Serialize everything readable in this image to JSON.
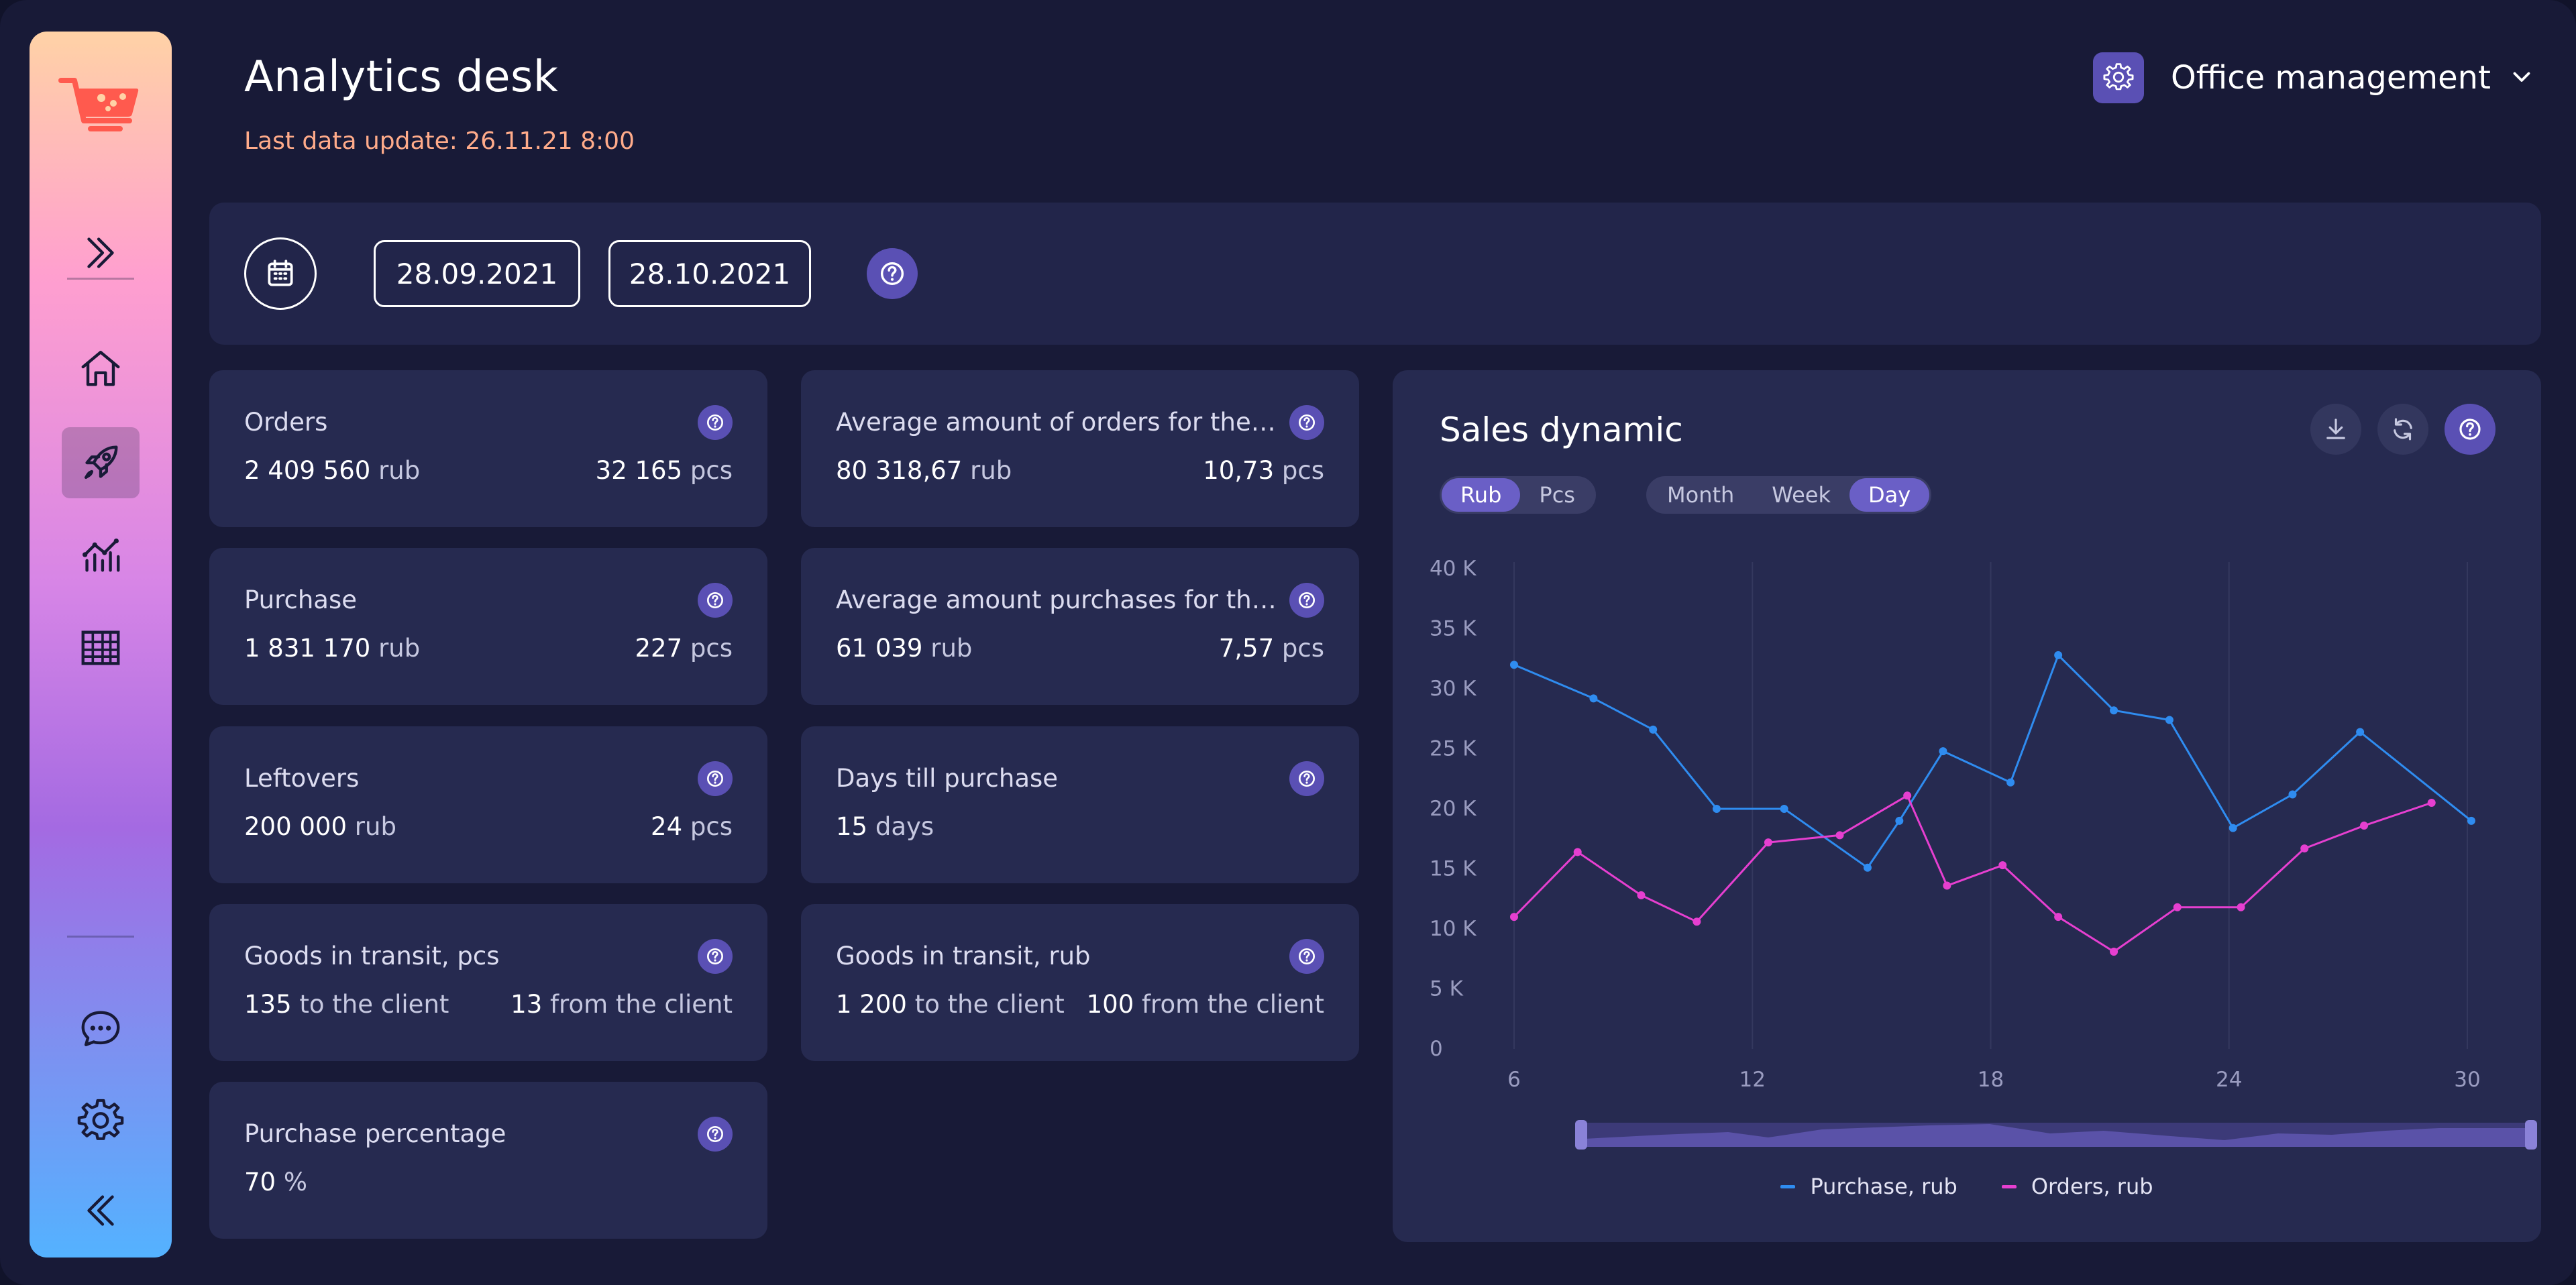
{
  "sidebar": {
    "items": [
      {
        "name": "expand-icon",
        "active": false
      },
      {
        "name": "home-icon",
        "active": false
      },
      {
        "name": "rocket-icon",
        "active": true
      },
      {
        "name": "analytics-icon",
        "active": false
      },
      {
        "name": "table-icon",
        "active": false
      },
      {
        "name": "chat-icon",
        "active": false
      },
      {
        "name": "settings-icon",
        "active": false
      },
      {
        "name": "collapse-icon",
        "active": false
      }
    ]
  },
  "header": {
    "title": "Analytics desk",
    "last_update": "Last data update: 26.11.21 8:00",
    "office": "Office management"
  },
  "datebar": {
    "date_from": "28.09.2021",
    "date_to": "28.10.2021"
  },
  "cards": [
    {
      "title": "Orders",
      "left_num": "2 409 560",
      "left_unit": "rub",
      "right_num": "32 165",
      "right_unit": "pcs"
    },
    {
      "title": "Average amount of orders for the per..",
      "left_num": "80 318,67",
      "left_unit": "rub",
      "right_num": "10,73",
      "right_unit": "pcs"
    },
    {
      "title": "Purchase",
      "left_num": "1 831 170",
      "left_unit": "rub",
      "right_num": "227",
      "right_unit": "pcs"
    },
    {
      "title": "Average amount purchases for the pe..",
      "left_num": "61 039",
      "left_unit": "rub",
      "right_num": "7,57",
      "right_unit": "pcs"
    },
    {
      "title": "Leftovers",
      "left_num": "200 000",
      "left_unit": "rub",
      "right_num": "24",
      "right_unit": "pcs"
    },
    {
      "title": "Days till purchase",
      "left_num": "15",
      "left_unit": "days",
      "right_num": "",
      "right_unit": ""
    },
    {
      "title": "Goods in transit, pcs",
      "left_num": "135",
      "left_unit": "to the client",
      "right_num": "13",
      "right_unit": "from the client"
    },
    {
      "title": "Goods in transit, rub",
      "left_num": "1 200",
      "left_unit": "to the client",
      "right_num": "100",
      "right_unit": "from the client"
    },
    {
      "title": "Purchase percentage",
      "left_num": "70",
      "left_unit": "%",
      "right_num": "",
      "right_unit": ""
    }
  ],
  "chart": {
    "title": "Sales dynamic",
    "unit_toggle": [
      "Rub",
      "Pcs"
    ],
    "unit_selected": "Rub",
    "period_toggle": [
      "Month",
      "Week",
      "Day"
    ],
    "period_selected": "Day"
  },
  "colors": {
    "purchase": "#2f8cf0",
    "orders": "#e63fd0",
    "accent": "#5a50b4"
  },
  "chart_data": {
    "type": "line",
    "title": "Sales dynamic",
    "xlabel": "",
    "ylabel": "",
    "x": [
      6,
      8,
      10,
      11,
      13,
      14,
      15,
      16,
      17,
      18,
      19,
      20,
      21,
      22,
      24,
      25,
      26,
      27,
      28,
      29,
      30
    ],
    "x_ticks": [
      "6",
      "12",
      "18",
      "24",
      "30"
    ],
    "x_tick_values": [
      6,
      12,
      18,
      24,
      30
    ],
    "xlim": [
      6,
      30
    ],
    "y_ticks": [
      "0",
      "5 K",
      "10 K",
      "15 K",
      "20 K",
      "25 K",
      "30 K",
      "35 K",
      "40 K"
    ],
    "ylim": [
      0,
      40000
    ],
    "grid": "vertical",
    "legend": "bottom-center",
    "series": [
      {
        "name": "Purchase, rub",
        "points": [
          [
            6,
            32000
          ],
          [
            8,
            29200
          ],
          [
            9.5,
            26600
          ],
          [
            11.1,
            20000
          ],
          [
            12.8,
            20000
          ],
          [
            14.9,
            15100
          ],
          [
            15.7,
            19000
          ],
          [
            16.8,
            24800
          ],
          [
            18.5,
            22200
          ],
          [
            19.7,
            32800
          ],
          [
            21.1,
            28200
          ],
          [
            22.5,
            27400
          ],
          [
            24.1,
            18400
          ],
          [
            25.6,
            21200
          ],
          [
            27.3,
            26400
          ],
          [
            30.1,
            19000
          ]
        ]
      },
      {
        "name": "Orders, rub",
        "points": [
          [
            6,
            11000
          ],
          [
            7.6,
            16400
          ],
          [
            9.2,
            12800
          ],
          [
            10.6,
            10600
          ],
          [
            12.4,
            17200
          ],
          [
            14.2,
            17800
          ],
          [
            15.9,
            21100
          ],
          [
            16.9,
            13600
          ],
          [
            18.3,
            15300
          ],
          [
            19.7,
            11000
          ],
          [
            21.1,
            8100
          ],
          [
            22.7,
            11800
          ],
          [
            24.3,
            11800
          ],
          [
            25.9,
            16700
          ],
          [
            27.4,
            18600
          ],
          [
            29.1,
            20500
          ]
        ]
      }
    ]
  }
}
